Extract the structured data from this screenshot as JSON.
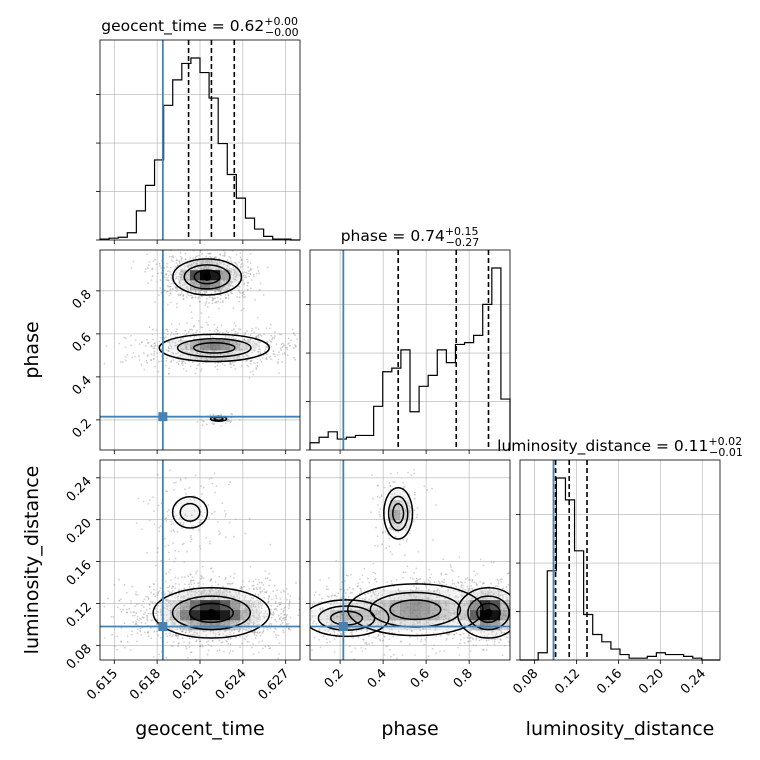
{
  "colors": {
    "truth": "#4682b4",
    "hist": "#000000",
    "grid": "#b0b0b0",
    "points": "#9a9a9a"
  },
  "chart_data": {
    "type": "corner",
    "parameters": [
      {
        "key": "geocent_time",
        "axis_label": "geocent_time",
        "range": [
          0.614,
          0.628
        ],
        "ticks": [
          "0.615",
          "0.618",
          "0.621",
          "0.624",
          "0.627"
        ],
        "truth": 0.6184,
        "quantiles": [
          0.6202,
          0.6218,
          0.6234
        ],
        "title": {
          "text": "geocent_time = 0.62",
          "sup": "+0.00",
          "sub": "−0.00"
        }
      },
      {
        "key": "phase",
        "axis_label": "phase",
        "range": [
          0.06,
          0.99
        ],
        "ticks": [
          "0.2",
          "0.4",
          "0.6",
          "0.8"
        ],
        "truth": 0.215,
        "quantiles": [
          0.47,
          0.74,
          0.89
        ],
        "title": {
          "text": "phase = 0.74",
          "sup": "+0.15",
          "sub": "−0.27"
        }
      },
      {
        "key": "luminosity_distance",
        "axis_label": "luminosity_distance",
        "range": [
          0.066,
          0.257
        ],
        "ticks": [
          "0.08",
          "0.12",
          "0.16",
          "0.20",
          "0.24"
        ],
        "truth": 0.098,
        "quantiles": [
          0.1,
          0.113,
          0.13
        ],
        "title": {
          "text": "luminosity_distance = 0.11",
          "sup": "+0.02",
          "sub": "−0.01"
        }
      }
    ],
    "histograms": [
      {
        "param": "geocent_time",
        "bins": [
          0.614,
          0.628
        ],
        "counts": [
          0.5,
          1,
          1.5,
          4,
          16,
          30,
          44,
          74,
          88,
          97,
          100,
          92,
          78,
          53,
          36,
          23,
          12,
          6,
          2,
          0.5,
          0.5,
          0
        ]
      },
      {
        "param": "phase",
        "bins": [
          0.06,
          0.99
        ],
        "counts": [
          4,
          7,
          10,
          6,
          7,
          8,
          8,
          24,
          43,
          45,
          55,
          21,
          35,
          41,
          55,
          48,
          58,
          59,
          63,
          80,
          100,
          28
        ]
      },
      {
        "param": "luminosity_distance",
        "bins": [
          0.066,
          0.257
        ],
        "counts": [
          0,
          0,
          4,
          49,
          100,
          88,
          60,
          25,
          14,
          10,
          6,
          3,
          1,
          1,
          2,
          4,
          3,
          3,
          2,
          1,
          0,
          0
        ]
      }
    ],
    "contours_2d": [
      {
        "x": "geocent_time",
        "y": "phase",
        "modes": [
          {
            "cx": 0.6215,
            "cy": 0.865,
            "sx": 0.001,
            "sy": 0.035,
            "peak": 1.0
          },
          {
            "cx": 0.622,
            "cy": 0.535,
            "sx": 0.0017,
            "sy": 0.028,
            "peak": 0.6
          },
          {
            "cx": 0.6223,
            "cy": 0.205,
            "sx": 0.0004,
            "sy": 0.008,
            "peak": 0.25
          }
        ]
      },
      {
        "x": "phase",
        "y": "luminosity_distance",
        "modes": [
          {
            "cx": 0.89,
            "cy": 0.111,
            "sx": 0.06,
            "sy": 0.01,
            "peak": 1.0
          },
          {
            "cx": 0.55,
            "cy": 0.114,
            "sx": 0.14,
            "sy": 0.011,
            "peak": 0.55
          },
          {
            "cx": 0.23,
            "cy": 0.106,
            "sx": 0.09,
            "sy": 0.008,
            "peak": 0.4
          },
          {
            "cx": 0.47,
            "cy": 0.206,
            "sx": 0.03,
            "sy": 0.011,
            "peak": 0.5
          }
        ]
      },
      {
        "x": "geocent_time",
        "y": "luminosity_distance",
        "modes": [
          {
            "cx": 0.6218,
            "cy": 0.111,
            "sx": 0.0017,
            "sy": 0.01,
            "peak": 1.0
          },
          {
            "cx": 0.6203,
            "cy": 0.207,
            "sx": 0.0009,
            "sy": 0.011,
            "peak": 0.15
          }
        ]
      }
    ],
    "grid": true
  }
}
